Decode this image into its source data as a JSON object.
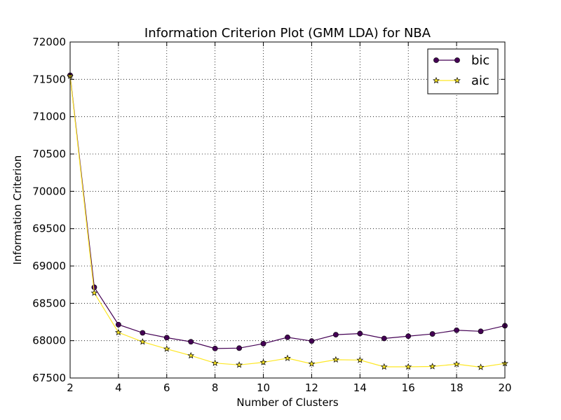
{
  "chart_data": {
    "type": "line",
    "title": "Information Criterion Plot (GMM LDA) for NBA",
    "xlabel": "Number of Clusters",
    "ylabel": "Information Criterion",
    "xlim": [
      2,
      20
    ],
    "ylim": [
      67500,
      72000
    ],
    "xticks": [
      2,
      4,
      6,
      8,
      10,
      12,
      14,
      16,
      18,
      20
    ],
    "yticks": [
      67500,
      68000,
      68500,
      69000,
      69500,
      70000,
      70500,
      71000,
      71500,
      72000
    ],
    "grid": true,
    "legend_position": "top-right",
    "x": [
      2,
      3,
      4,
      5,
      6,
      7,
      8,
      9,
      10,
      11,
      12,
      13,
      14,
      15,
      16,
      17,
      18,
      19,
      20
    ],
    "series": [
      {
        "name": "bic",
        "color": "#440154",
        "marker": "circle",
        "values": [
          71555,
          68715,
          68215,
          68105,
          68040,
          67985,
          67895,
          67900,
          67960,
          68045,
          67995,
          68080,
          68095,
          68030,
          68060,
          68090,
          68140,
          68125,
          68200
        ]
      },
      {
        "name": "aic",
        "color": "#fde725",
        "marker": "star",
        "values": [
          71545,
          68640,
          68110,
          67985,
          67890,
          67800,
          67700,
          67675,
          67710,
          67765,
          67690,
          67745,
          67740,
          67650,
          67650,
          67655,
          67685,
          67645,
          67695
        ]
      }
    ]
  }
}
